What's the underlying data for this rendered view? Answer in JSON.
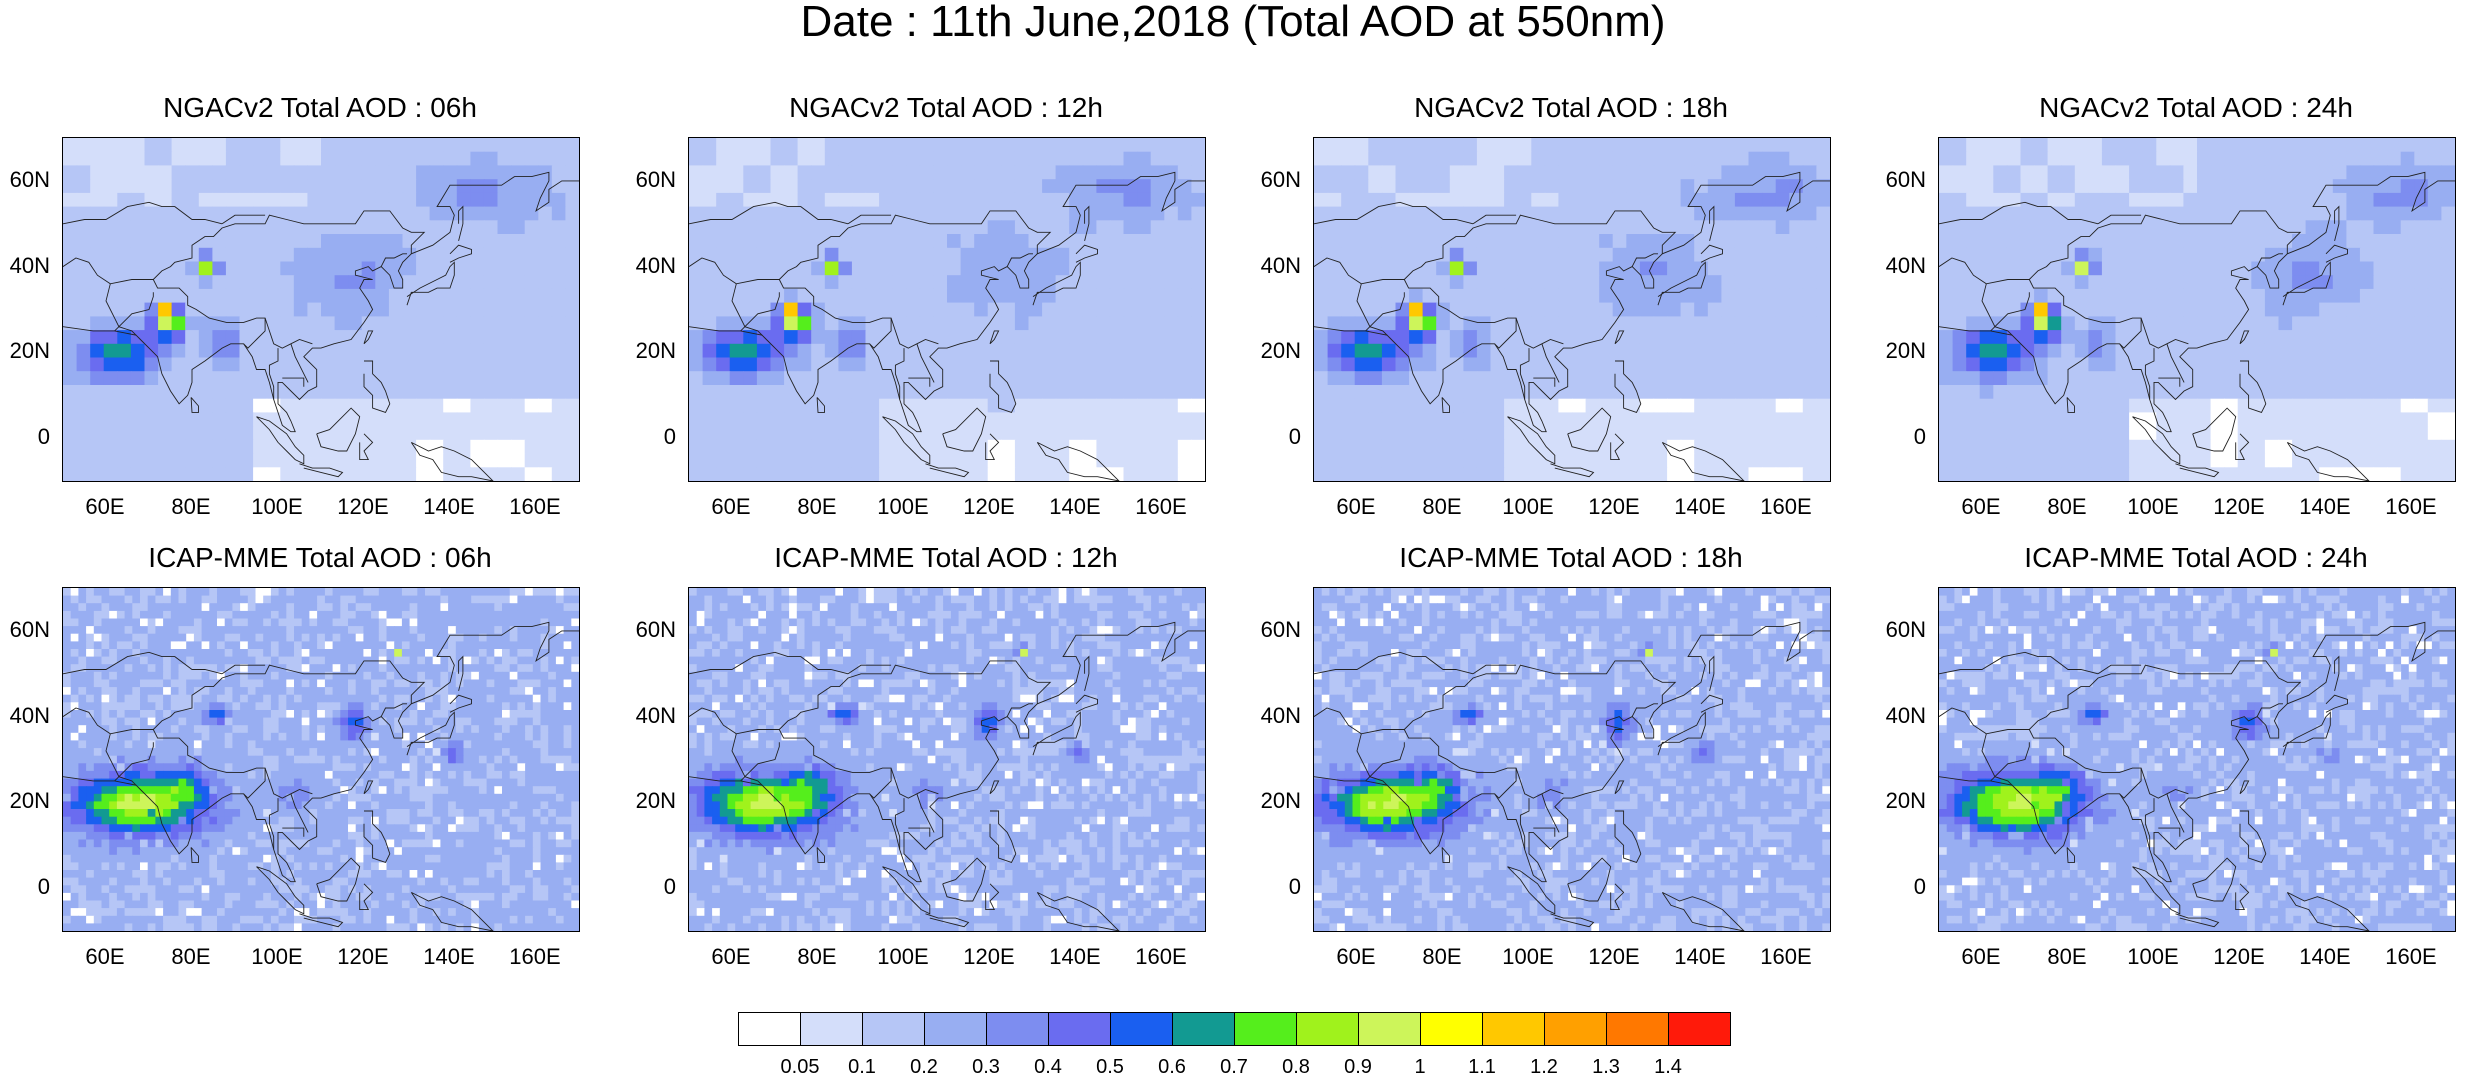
{
  "page_title": "Date : 11th June,2018 (Total AOD at 550nm)",
  "axis_ticks": {
    "y": [
      "60N",
      "40N",
      "20N",
      "0"
    ],
    "x": [
      "60E",
      "80E",
      "100E",
      "120E",
      "140E",
      "160E"
    ]
  },
  "colorbar": {
    "labels": [
      "0.05",
      "0.1",
      "0.2",
      "0.3",
      "0.4",
      "0.5",
      "0.6",
      "0.7",
      "0.8",
      "0.9",
      "1",
      "1.1",
      "1.2",
      "1.3",
      "1.4"
    ],
    "colors": [
      "#ffffff",
      "#d4defa",
      "#b6c6f6",
      "#98aef2",
      "#7d8df0",
      "#6a6cf0",
      "#1a5ff0",
      "#129a92",
      "#55ee1c",
      "#a0f21c",
      "#cdf55a",
      "#ffff00",
      "#ffc800",
      "#ffa000",
      "#ff7800",
      "#ff1a0a"
    ]
  },
  "chart_data": [
    {
      "type": "heatmap",
      "title": "NGACv2 Total AOD : 06h",
      "model": "NGACv2",
      "hour": "06h",
      "xlim": [
        50,
        170
      ],
      "ylim": [
        -10,
        70
      ],
      "x_ticks": [
        "60E",
        "80E",
        "100E",
        "120E",
        "140E",
        "160E"
      ],
      "y_ticks": [
        "60N",
        "40N",
        "20N",
        "0"
      ]
    },
    {
      "type": "heatmap",
      "title": "NGACv2 Total AOD : 12h",
      "model": "NGACv2",
      "hour": "12h",
      "xlim": [
        50,
        170
      ],
      "ylim": [
        -10,
        70
      ],
      "x_ticks": [
        "60E",
        "80E",
        "100E",
        "120E",
        "140E",
        "160E"
      ],
      "y_ticks": [
        "60N",
        "40N",
        "20N",
        "0"
      ]
    },
    {
      "type": "heatmap",
      "title": "NGACv2 Total AOD : 18h",
      "model": "NGACv2",
      "hour": "18h",
      "xlim": [
        50,
        170
      ],
      "ylim": [
        -10,
        70
      ],
      "x_ticks": [
        "60E",
        "80E",
        "100E",
        "120E",
        "140E",
        "160E"
      ],
      "y_ticks": [
        "60N",
        "40N",
        "20N",
        "0"
      ]
    },
    {
      "type": "heatmap",
      "title": "NGACv2 Total AOD : 24h",
      "model": "NGACv2",
      "hour": "24h",
      "xlim": [
        50,
        170
      ],
      "ylim": [
        -10,
        70
      ],
      "x_ticks": [
        "60E",
        "80E",
        "100E",
        "120E",
        "140E",
        "160E"
      ],
      "y_ticks": [
        "60N",
        "40N",
        "20N",
        "0"
      ]
    },
    {
      "type": "heatmap",
      "title": "ICAP-MME Total AOD : 06h",
      "model": "ICAP-MME",
      "hour": "06h",
      "xlim": [
        50,
        170
      ],
      "ylim": [
        -10,
        70
      ],
      "x_ticks": [
        "60E",
        "80E",
        "100E",
        "120E",
        "140E",
        "160E"
      ],
      "y_ticks": [
        "60N",
        "40N",
        "20N",
        "0"
      ]
    },
    {
      "type": "heatmap",
      "title": "ICAP-MME Total AOD : 12h",
      "model": "ICAP-MME",
      "hour": "12h",
      "xlim": [
        50,
        170
      ],
      "ylim": [
        -10,
        70
      ],
      "x_ticks": [
        "60E",
        "80E",
        "100E",
        "120E",
        "140E",
        "160E"
      ],
      "y_ticks": [
        "60N",
        "40N",
        "20N",
        "0"
      ]
    },
    {
      "type": "heatmap",
      "title": "ICAP-MME Total AOD : 18h",
      "model": "ICAP-MME",
      "hour": "18h",
      "xlim": [
        50,
        170
      ],
      "ylim": [
        -10,
        70
      ],
      "x_ticks": [
        "60E",
        "80E",
        "100E",
        "120E",
        "140E",
        "160E"
      ],
      "y_ticks": [
        "60N",
        "40N",
        "20N",
        "0"
      ]
    },
    {
      "type": "heatmap",
      "title": "ICAP-MME Total AOD : 24h",
      "model": "ICAP-MME",
      "hour": "24h",
      "xlim": [
        50,
        170
      ],
      "ylim": [
        -10,
        70
      ],
      "x_ticks": [
        "60E",
        "80E",
        "100E",
        "120E",
        "140E",
        "160E"
      ],
      "y_ticks": [
        "60N",
        "40N",
        "20N",
        "0"
      ]
    }
  ]
}
